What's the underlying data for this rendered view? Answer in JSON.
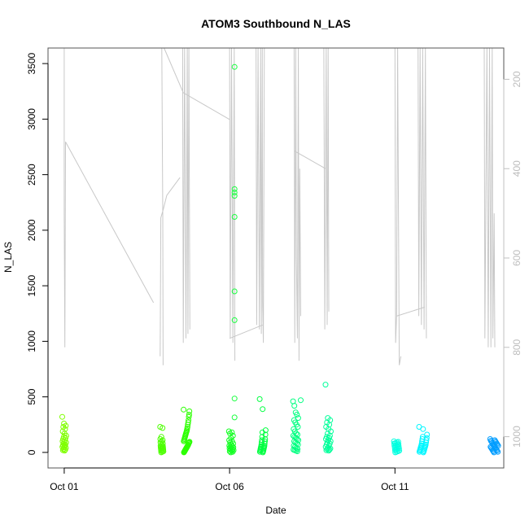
{
  "chart_data": {
    "type": "scatter",
    "title": "ATOM3 Southbound N_LAS",
    "xlabel": "Date",
    "ylabel": "N_LAS",
    "x_ticks": [
      "Oct 01",
      "Oct 06",
      "Oct 11"
    ],
    "x_tick_days": [
      1,
      6,
      11
    ],
    "xlim_days": [
      0.51,
      14.29
    ],
    "ylim": [
      -140,
      3640
    ],
    "y_ticks": [
      0,
      500,
      1000,
      1500,
      2000,
      2500,
      3000,
      3500
    ],
    "y2_ticks": [
      200,
      400,
      600,
      800,
      1000
    ],
    "y2lim": [
      1070,
      130
    ],
    "y2_color": "#c0c0c0",
    "grid": false,
    "legend": "none",
    "point_groups": [
      {
        "day": 1.0,
        "spread": 0.06,
        "color": "#7fff00",
        "values": [
          320,
          260,
          240,
          230,
          210,
          190,
          170,
          150,
          140,
          130,
          120,
          110,
          100,
          95,
          90,
          80,
          70,
          65,
          60,
          50,
          45,
          40,
          30,
          25,
          20,
          15
        ]
      },
      {
        "day": 3.95,
        "spread": 0.05,
        "color": "#4cff00",
        "values": [
          230,
          220,
          140,
          120,
          110,
          100,
          90,
          80,
          70,
          60,
          55,
          50,
          45,
          40,
          35,
          30,
          25,
          20,
          15,
          10,
          5,
          0
        ]
      },
      {
        "day": 4.7,
        "spread": 0.09,
        "color": "#2bff00",
        "values": [
          385,
          370,
          340,
          320,
          290,
          270,
          250,
          230,
          215,
          200,
          190,
          180,
          170,
          160,
          150,
          140,
          130,
          120,
          110,
          100,
          95,
          90,
          85,
          80,
          70,
          65,
          60,
          55,
          50,
          45,
          40,
          35,
          30,
          25,
          20,
          15,
          10,
          5,
          0
        ]
      },
      {
        "day": 6.05,
        "spread": 0.07,
        "color": "#10ff20",
        "values": [
          190,
          180,
          170,
          150,
          130,
          110,
          100,
          90,
          80,
          70,
          60,
          55,
          50,
          45,
          40,
          35,
          30,
          25,
          20,
          15,
          10,
          5,
          0
        ]
      },
      {
        "day": 6.15,
        "spread": 0.0,
        "color": "#1aff40",
        "values": [
          3470,
          2370,
          2340,
          2310,
          2120,
          1450,
          1190,
          485,
          315
        ]
      },
      {
        "day": 7.0,
        "spread": 0.09,
        "color": "#00ff40",
        "values": [
          480,
          390,
          200,
          180,
          160,
          140,
          120,
          110,
          100,
          90,
          80,
          70,
          60,
          55,
          50,
          45,
          40,
          35,
          30,
          25,
          20,
          15,
          10,
          5,
          0
        ]
      },
      {
        "day": 8.0,
        "spread": 0.08,
        "color": "#00ff80",
        "values": [
          460,
          420,
          360,
          340,
          310,
          290,
          270,
          250,
          230,
          210,
          190,
          170,
          160,
          150,
          140,
          130,
          120,
          110,
          100,
          90,
          80,
          70,
          60,
          50,
          40,
          30,
          25,
          20,
          15,
          10
        ]
      },
      {
        "day": 8.15,
        "spread": 0.0,
        "color": "#00ff80",
        "values": [
          470
        ]
      },
      {
        "day": 8.98,
        "spread": 0.08,
        "color": "#00ff9a",
        "values": [
          610,
          310,
          290,
          270,
          250,
          230,
          210,
          190,
          170,
          150,
          140,
          130,
          120,
          110,
          100,
          90,
          80,
          70,
          60,
          50,
          40,
          35,
          30,
          25,
          20,
          15
        ]
      },
      {
        "day": 11.05,
        "spread": 0.08,
        "color": "#00ffe0",
        "values": [
          100,
          95,
          90,
          85,
          80,
          75,
          70,
          65,
          60,
          55,
          50,
          45,
          40,
          35,
          30,
          25,
          20,
          15,
          10,
          5,
          0
        ]
      },
      {
        "day": 11.85,
        "spread": 0.12,
        "color": "#00f6ff",
        "values": [
          230,
          210,
          160,
          140,
          130,
          120,
          110,
          100,
          90,
          80,
          70,
          65,
          60,
          55,
          50,
          45,
          40,
          35,
          30,
          25,
          20,
          15,
          10,
          5,
          0
        ]
      },
      {
        "day": 14.0,
        "spread": 0.12,
        "color": "#009dff",
        "values": [
          120,
          110,
          105,
          100,
          95,
          90,
          85,
          80,
          75,
          70,
          65,
          60,
          55,
          50,
          45,
          40,
          35,
          30,
          25,
          20,
          15,
          10,
          5,
          0
        ]
      }
    ],
    "line_series": {
      "color": "#c8c8c8",
      "axis": "right",
      "segments": [
        [
          [
            1.0,
            130
          ],
          [
            1.0,
            500
          ],
          [
            1.02,
            800
          ],
          [
            1.04,
            340
          ],
          [
            3.7,
            700
          ]
        ],
        [
          [
            3.9,
            820
          ],
          [
            3.92,
            510
          ],
          [
            4.0,
            490
          ],
          [
            4.1,
            460
          ],
          [
            4.5,
            420
          ]
        ],
        [
          [
            3.95,
            130
          ],
          [
            3.98,
            500
          ],
          [
            3.99,
            840
          ]
        ],
        [
          [
            4.02,
            130
          ],
          [
            4.6,
            230
          ]
        ],
        [
          [
            4.58,
            130
          ],
          [
            4.6,
            790
          ],
          [
            4.64,
            130
          ],
          [
            4.68,
            780
          ],
          [
            4.72,
            130
          ],
          [
            4.74,
            770
          ],
          [
            4.77,
            130
          ],
          [
            4.8,
            760
          ]
        ],
        [
          [
            4.6,
            230
          ],
          [
            6.0,
            290
          ]
        ],
        [
          [
            6.0,
            130
          ],
          [
            6.02,
            780
          ],
          [
            6.06,
            130
          ],
          [
            6.1,
            790
          ],
          [
            6.14,
            130
          ],
          [
            6.16,
            830
          ]
        ],
        [
          [
            6.8,
            130
          ],
          [
            6.82,
            750
          ],
          [
            6.86,
            130
          ],
          [
            6.9,
            760
          ],
          [
            6.94,
            130
          ],
          [
            6.96,
            770
          ],
          [
            6.99,
            130
          ],
          [
            7.0,
            700
          ],
          [
            7.02,
            790
          ],
          [
            7.05,
            130
          ]
        ],
        [
          [
            6.0,
            780
          ],
          [
            7.0,
            750
          ]
        ],
        [
          [
            7.95,
            130
          ],
          [
            7.97,
            790
          ],
          [
            8.0,
            130
          ],
          [
            8.02,
            600
          ],
          [
            8.05,
            780
          ],
          [
            8.08,
            130
          ],
          [
            8.1,
            830
          ],
          [
            8.12,
            400
          ],
          [
            8.15,
            730
          ]
        ],
        [
          [
            7.95,
            360
          ],
          [
            8.9,
            400
          ]
        ],
        [
          [
            8.85,
            130
          ],
          [
            8.88,
            760
          ],
          [
            8.92,
            130
          ],
          [
            8.95,
            750
          ],
          [
            8.98,
            130
          ],
          [
            9.0,
            720
          ]
        ],
        [
          [
            11.0,
            130
          ],
          [
            11.02,
            790
          ],
          [
            11.05,
            730
          ],
          [
            11.08,
            130
          ],
          [
            11.1,
            420
          ],
          [
            11.13,
            840
          ],
          [
            11.18,
            820
          ]
        ],
        [
          [
            11.05,
            730
          ],
          [
            11.9,
            710
          ]
        ],
        [
          [
            11.7,
            130
          ],
          [
            11.72,
            730
          ],
          [
            11.76,
            130
          ],
          [
            11.8,
            750
          ],
          [
            11.84,
            130
          ],
          [
            11.88,
            760
          ],
          [
            11.92,
            130
          ],
          [
            11.95,
            780
          ]
        ],
        [
          [
            13.7,
            130
          ],
          [
            13.72,
            780
          ],
          [
            13.78,
            130
          ],
          [
            13.82,
            800
          ],
          [
            13.86,
            130
          ],
          [
            13.9,
            800
          ],
          [
            13.94,
            130
          ],
          [
            13.96,
            780
          ],
          [
            14.0,
            500
          ],
          [
            14.02,
            800
          ]
        ]
      ]
    }
  }
}
